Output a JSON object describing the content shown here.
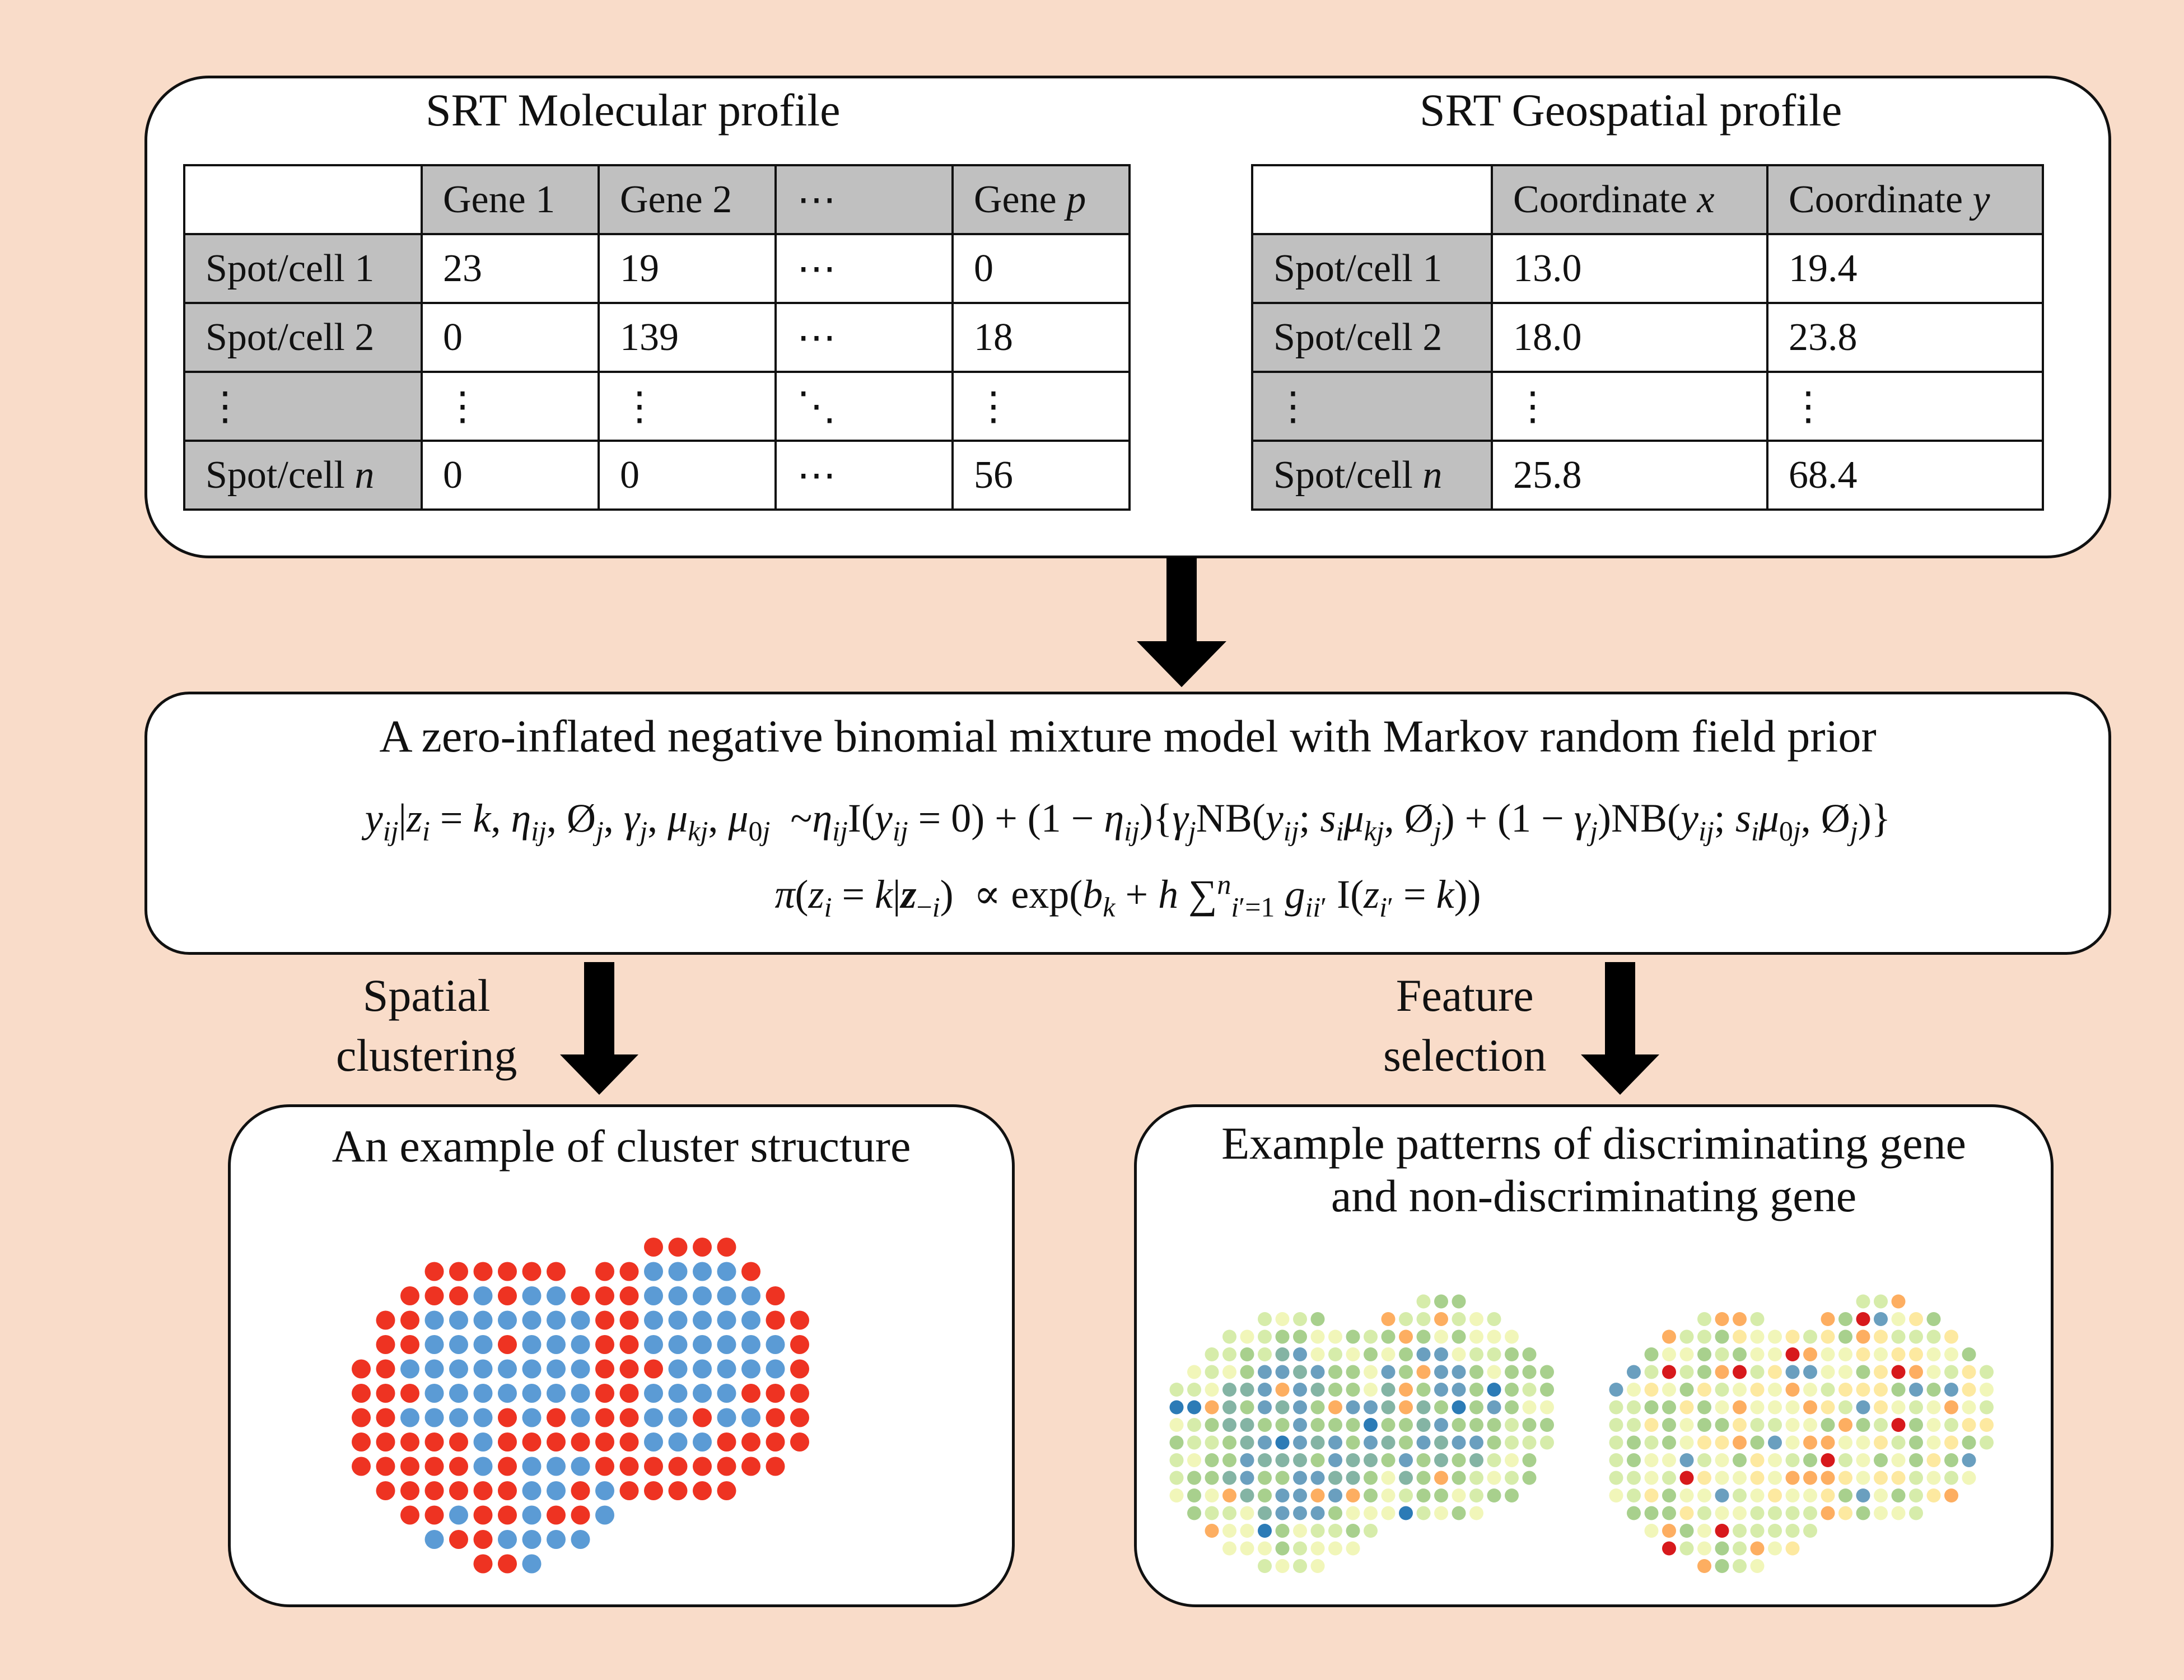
{
  "molecular": {
    "title": "SRT Molecular profile",
    "header": [
      "",
      "Gene 1",
      "Gene 2",
      "⋯",
      "Gene p"
    ],
    "rows": [
      [
        "Spot/cell 1",
        "23",
        "19",
        "⋯",
        "0"
      ],
      [
        "Spot/cell 2",
        "0",
        "139",
        "⋯",
        "18"
      ],
      [
        "⋮",
        "⋮",
        "⋮",
        "⋱",
        "⋮"
      ],
      [
        "Spot/cell n",
        "0",
        "0",
        "⋯",
        "56"
      ]
    ]
  },
  "geospatial": {
    "title": "SRT Geospatial profile",
    "header": [
      "",
      "Coordinate x",
      "Coordinate y"
    ],
    "rows": [
      [
        "Spot/cell 1",
        "13.0",
        "19.4"
      ],
      [
        "Spot/cell 2",
        "18.0",
        "23.8"
      ],
      [
        "⋮",
        "⋮",
        "⋮"
      ],
      [
        "Spot/cell n",
        "25.8",
        "68.4"
      ]
    ]
  },
  "model": {
    "title": "A zero-inflated negative binomial mixture model with Markov random field prior",
    "equation1": "y_ij | z_i = k, η_ij, Ø_j, γ_j, μ_kj, μ_0j ~ η_ij I(y_ij = 0) + (1 − η_ij){γ_j NB(y_ij; s_i μ_kj, Ø_j) + (1 − γ_j) NB(y_ij; s_i μ_0j, Ø_j)}",
    "equation2": "π(z_i = k | z_−i) ∝ exp(b_k + h ∑_{i′=1}^n g_ii′ I(z_i′ = k))"
  },
  "branches": {
    "left_label": [
      "Spatial",
      "clustering"
    ],
    "right_label": [
      "Feature",
      "selection"
    ]
  },
  "cluster_panel": {
    "title": "An example of cluster structure",
    "colors": {
      "cluster_a": "#ee3322",
      "cluster_b": "#5b9bd5"
    }
  },
  "pattern_panel": {
    "title_line1": "Example patterns of discriminating gene",
    "title_line2": "and non-discriminating gene",
    "palette": [
      "#2c7bb6",
      "#6a9fbf",
      "#84b4a4",
      "#a8d08d",
      "#d6ecaa",
      "#f1f6b9",
      "#fde9a0",
      "#fdae61",
      "#d7191c"
    ]
  },
  "colors": {
    "background": "#f9dcc9",
    "header_fill": "#c0c0c0",
    "box_fill": "#ffffff"
  }
}
